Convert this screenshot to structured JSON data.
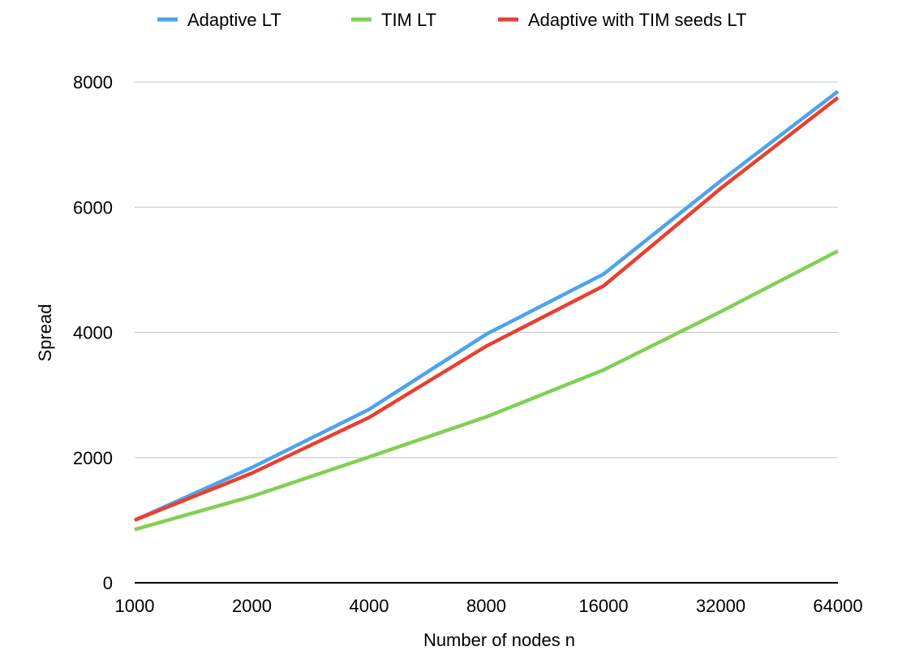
{
  "chart_data": {
    "type": "line",
    "title": "",
    "xlabel": "Number of nodes n",
    "ylabel": "Spread",
    "categories": [
      "1000",
      "2000",
      "4000",
      "8000",
      "16000",
      "32000",
      "64000"
    ],
    "ylim": [
      0,
      8000
    ],
    "yticks": [
      "0",
      "2000",
      "4000",
      "6000",
      "8000"
    ],
    "grid": "horizontal",
    "legend_position": "top",
    "series": [
      {
        "name": "Adaptive LT",
        "color": "#4da3ee",
        "values": [
          1000,
          1840,
          2770,
          3970,
          4930,
          6420,
          7850
        ]
      },
      {
        "name": "TIM LT",
        "color": "#7fd152",
        "values": [
          850,
          1380,
          2010,
          2650,
          3400,
          4330,
          5300
        ]
      },
      {
        "name": "Adaptive with TIM seeds LT",
        "color": "#e8402f",
        "values": [
          1000,
          1750,
          2640,
          3780,
          4740,
          6300,
          7750
        ]
      }
    ]
  }
}
